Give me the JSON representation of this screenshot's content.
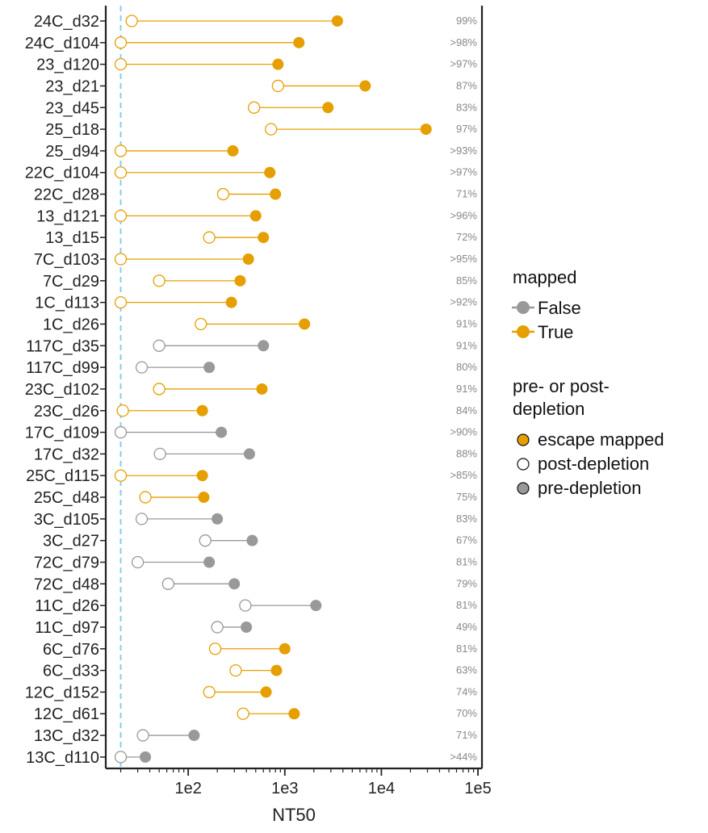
{
  "chart_data": {
    "type": "dumbbell",
    "xlabel": "NT50",
    "xscale": "log",
    "xlim": [
      14,
      110000
    ],
    "xticks": [
      {
        "value": 100,
        "label": "1e2"
      },
      {
        "value": 1000,
        "label": "1e3"
      },
      {
        "value": 10000,
        "label": "1e4"
      },
      {
        "value": 100000,
        "label": "1e5"
      }
    ],
    "limit_of_detection": 20,
    "colors": {
      "mapped_true": "#E69F00",
      "mapped_false": "#999999",
      "lod_line": "#87CEEB"
    },
    "rows": [
      {
        "label": "24C_d32",
        "pre": 3500,
        "post": 26,
        "mapped": true,
        "pct": "99%"
      },
      {
        "label": "24C_d104",
        "pre": 1400,
        "post": 20,
        "mapped": true,
        "pct": ">98%"
      },
      {
        "label": "23_d120",
        "pre": 850,
        "post": 20,
        "mapped": true,
        "pct": ">97%"
      },
      {
        "label": "23_d21",
        "pre": 6800,
        "post": 850,
        "mapped": true,
        "pct": "87%"
      },
      {
        "label": "23_d45",
        "pre": 2800,
        "post": 480,
        "mapped": true,
        "pct": "83%"
      },
      {
        "label": "25_d18",
        "pre": 29000,
        "post": 720,
        "mapped": true,
        "pct": "97%"
      },
      {
        "label": "25_d94",
        "pre": 290,
        "post": 20,
        "mapped": true,
        "pct": ">93%"
      },
      {
        "label": "22C_d104",
        "pre": 700,
        "post": 20,
        "mapped": true,
        "pct": ">97%"
      },
      {
        "label": "22C_d28",
        "pre": 800,
        "post": 230,
        "mapped": true,
        "pct": "71%"
      },
      {
        "label": "13_d121",
        "pre": 500,
        "post": 20,
        "mapped": true,
        "pct": ">96%"
      },
      {
        "label": "13_d15",
        "pre": 600,
        "post": 165,
        "mapped": true,
        "pct": "72%"
      },
      {
        "label": "7C_d103",
        "pre": 420,
        "post": 20,
        "mapped": true,
        "pct": ">95%"
      },
      {
        "label": "7C_d29",
        "pre": 345,
        "post": 50,
        "mapped": true,
        "pct": "85%"
      },
      {
        "label": "1C_d113",
        "pre": 280,
        "post": 20,
        "mapped": true,
        "pct": ">92%"
      },
      {
        "label": "1C_d26",
        "pre": 1600,
        "post": 135,
        "mapped": true,
        "pct": "91%"
      },
      {
        "label": "117C_d35",
        "pre": 600,
        "post": 50,
        "mapped": false,
        "pct": "91%"
      },
      {
        "label": "117C_d99",
        "pre": 165,
        "post": 33,
        "mapped": false,
        "pct": "80%"
      },
      {
        "label": "23C_d102",
        "pre": 580,
        "post": 50,
        "mapped": true,
        "pct": "91%"
      },
      {
        "label": "23C_d26",
        "pre": 140,
        "post": 21,
        "mapped": true,
        "pct": "84%"
      },
      {
        "label": "17C_d109",
        "pre": 220,
        "post": 20,
        "mapped": false,
        "pct": ">90%"
      },
      {
        "label": "17C_d32",
        "pre": 430,
        "post": 51,
        "mapped": false,
        "pct": "88%"
      },
      {
        "label": "25C_d115",
        "pre": 140,
        "post": 20,
        "mapped": true,
        "pct": ">85%"
      },
      {
        "label": "25C_d48",
        "pre": 145,
        "post": 36,
        "mapped": true,
        "pct": "75%"
      },
      {
        "label": "3C_d105",
        "pre": 200,
        "post": 33,
        "mapped": false,
        "pct": "83%"
      },
      {
        "label": "3C_d27",
        "pre": 460,
        "post": 150,
        "mapped": false,
        "pct": "67%"
      },
      {
        "label": "72C_d79",
        "pre": 165,
        "post": 30,
        "mapped": false,
        "pct": "81%"
      },
      {
        "label": "72C_d48",
        "pre": 300,
        "post": 62,
        "mapped": false,
        "pct": "79%"
      },
      {
        "label": "11C_d26",
        "pre": 2100,
        "post": 390,
        "mapped": false,
        "pct": "81%"
      },
      {
        "label": "11C_d97",
        "pre": 400,
        "post": 200,
        "mapped": false,
        "pct": "49%"
      },
      {
        "label": "6C_d76",
        "pre": 1000,
        "post": 190,
        "mapped": true,
        "pct": "81%"
      },
      {
        "label": "6C_d33",
        "pre": 820,
        "post": 310,
        "mapped": true,
        "pct": "63%"
      },
      {
        "label": "12C_d152",
        "pre": 640,
        "post": 165,
        "mapped": true,
        "pct": "74%"
      },
      {
        "label": "12C_d61",
        "pre": 1250,
        "post": 370,
        "mapped": true,
        "pct": "70%"
      },
      {
        "label": "13C_d32",
        "pre": 115,
        "post": 34,
        "mapped": false,
        "pct": "71%"
      },
      {
        "label": "13C_d110",
        "pre": 36,
        "post": 20,
        "mapped": false,
        "pct": ">44%"
      }
    ]
  },
  "legend": {
    "mapped": {
      "title": "mapped",
      "items": [
        {
          "label": "False",
          "color": "#999999"
        },
        {
          "label": "True",
          "color": "#E69F00"
        }
      ]
    },
    "depletion": {
      "title_line1": "pre- or post-",
      "title_line2": "depletion",
      "items": [
        {
          "label": "escape mapped",
          "fill": "#E69F00"
        },
        {
          "label": "post-depletion",
          "fill": "#ffffff"
        },
        {
          "label": "pre-depletion",
          "fill": "#999999"
        }
      ]
    }
  }
}
